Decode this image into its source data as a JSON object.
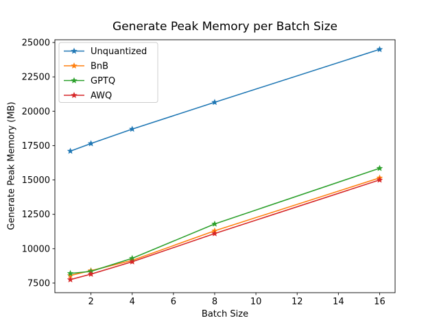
{
  "chart_data": {
    "type": "line",
    "title": "Generate Peak Memory per Batch Size",
    "xlabel": "Batch Size",
    "ylabel": "Generate Peak Memory (MB)",
    "x": [
      1,
      2,
      4,
      8,
      16
    ],
    "series": [
      {
        "name": "Unquantized",
        "color": "#1f77b4",
        "values": [
          17100,
          17650,
          18700,
          20650,
          24500
        ]
      },
      {
        "name": "BnB",
        "color": "#ff7f0e",
        "values": [
          8050,
          8400,
          9150,
          11300,
          15150
        ]
      },
      {
        "name": "GPTQ",
        "color": "#2ca02c",
        "values": [
          8200,
          8350,
          9300,
          11800,
          15850
        ]
      },
      {
        "name": "AWQ",
        "color": "#d62728",
        "values": [
          7750,
          8150,
          9050,
          11100,
          15000
        ]
      }
    ],
    "xticks": [
      2,
      4,
      6,
      8,
      10,
      12,
      14,
      16
    ],
    "yticks": [
      7500,
      10000,
      12500,
      15000,
      17500,
      20000,
      22500,
      25000
    ],
    "xlim": [
      0.25,
      16.75
    ],
    "ylim": [
      6800,
      25200
    ],
    "marker": "star",
    "grid": false,
    "legend_position": "upper-left",
    "axis_color": "#000000",
    "legend_border_color": "#cccccc",
    "background": "#ffffff"
  }
}
